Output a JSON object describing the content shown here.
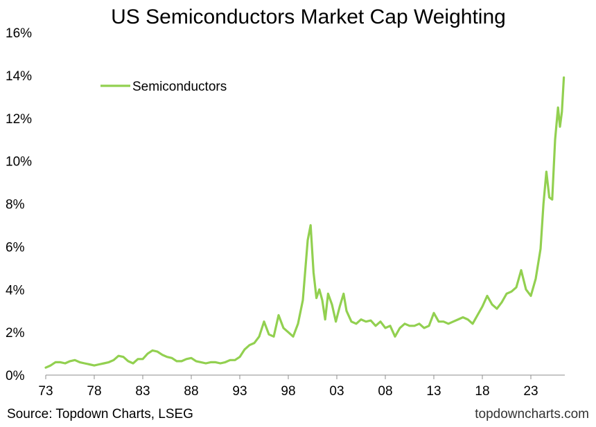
{
  "chart_data": {
    "type": "line",
    "title": "US Semiconductors Market Cap Weighting",
    "xlabel": "",
    "ylabel": "",
    "xlim": [
      1973,
      2026.5
    ],
    "ylim": [
      0,
      16
    ],
    "x_tick_values": [
      1973,
      1978,
      1983,
      1988,
      1993,
      1998,
      2003,
      2008,
      2013,
      2018,
      2023
    ],
    "x_tick_labels": [
      "73",
      "78",
      "83",
      "88",
      "93",
      "98",
      "03",
      "08",
      "13",
      "18",
      "23"
    ],
    "y_tick_values": [
      0,
      2,
      4,
      6,
      8,
      10,
      12,
      14,
      16
    ],
    "y_tick_labels": [
      "0%",
      "2%",
      "4%",
      "6%",
      "8%",
      "10%",
      "12%",
      "14%",
      "16%"
    ],
    "grid": false,
    "legend_position": "top-left",
    "series": [
      {
        "name": "Semiconductors",
        "color": "#92d050",
        "x": [
          1973.0,
          1973.5,
          1974.0,
          1974.5,
          1975.0,
          1975.5,
          1976.0,
          1976.5,
          1977.0,
          1977.5,
          1978.0,
          1978.5,
          1979.0,
          1979.5,
          1980.0,
          1980.5,
          1981.0,
          1981.5,
          1982.0,
          1982.5,
          1983.0,
          1983.5,
          1984.0,
          1984.5,
          1985.0,
          1985.5,
          1986.0,
          1986.5,
          1987.0,
          1987.5,
          1988.0,
          1988.5,
          1989.0,
          1989.5,
          1990.0,
          1990.5,
          1991.0,
          1991.5,
          1992.0,
          1992.5,
          1993.0,
          1993.5,
          1994.0,
          1994.5,
          1995.0,
          1995.5,
          1996.0,
          1996.5,
          1997.0,
          1997.5,
          1998.0,
          1998.5,
          1999.0,
          1999.5,
          2000.0,
          2000.3,
          2000.6,
          2000.9,
          2001.2,
          2001.5,
          2001.8,
          2002.1,
          2002.5,
          2002.9,
          2003.3,
          2003.7,
          2004.0,
          2004.5,
          2005.0,
          2005.5,
          2006.0,
          2006.5,
          2007.0,
          2007.5,
          2008.0,
          2008.5,
          2009.0,
          2009.5,
          2010.0,
          2010.5,
          2011.0,
          2011.5,
          2012.0,
          2012.5,
          2013.0,
          2013.5,
          2014.0,
          2014.5,
          2015.0,
          2015.5,
          2016.0,
          2016.5,
          2017.0,
          2017.5,
          2018.0,
          2018.5,
          2019.0,
          2019.5,
          2020.0,
          2020.5,
          2021.0,
          2021.5,
          2022.0,
          2022.5,
          2023.0,
          2023.5,
          2024.0,
          2024.3,
          2024.6,
          2024.9,
          2025.2,
          2025.5,
          2025.8,
          2026.0,
          2026.2,
          2026.4
        ],
        "y": [
          0.35,
          0.45,
          0.6,
          0.6,
          0.55,
          0.65,
          0.7,
          0.6,
          0.55,
          0.5,
          0.45,
          0.5,
          0.55,
          0.6,
          0.7,
          0.9,
          0.85,
          0.65,
          0.55,
          0.75,
          0.75,
          1.0,
          1.15,
          1.1,
          0.95,
          0.85,
          0.8,
          0.65,
          0.65,
          0.75,
          0.8,
          0.65,
          0.6,
          0.55,
          0.6,
          0.6,
          0.55,
          0.6,
          0.7,
          0.7,
          0.85,
          1.2,
          1.4,
          1.5,
          1.8,
          2.5,
          1.9,
          1.8,
          2.8,
          2.2,
          2.0,
          1.8,
          2.4,
          3.5,
          6.3,
          7.0,
          4.8,
          3.6,
          4.0,
          3.5,
          2.6,
          3.8,
          3.3,
          2.5,
          3.2,
          3.8,
          3.0,
          2.5,
          2.4,
          2.6,
          2.5,
          2.55,
          2.3,
          2.5,
          2.2,
          2.3,
          1.8,
          2.2,
          2.4,
          2.3,
          2.3,
          2.4,
          2.2,
          2.3,
          2.9,
          2.5,
          2.5,
          2.4,
          2.5,
          2.6,
          2.7,
          2.6,
          2.4,
          2.8,
          3.2,
          3.7,
          3.3,
          3.1,
          3.4,
          3.8,
          3.9,
          4.1,
          4.9,
          4.0,
          3.7,
          4.5,
          5.9,
          8.0,
          9.5,
          8.3,
          8.2,
          11.0,
          12.5,
          11.6,
          12.3,
          13.9
        ]
      }
    ]
  },
  "footer": {
    "source": "Source: Topdown Charts, LSEG",
    "brand": "topdowncharts.com"
  }
}
